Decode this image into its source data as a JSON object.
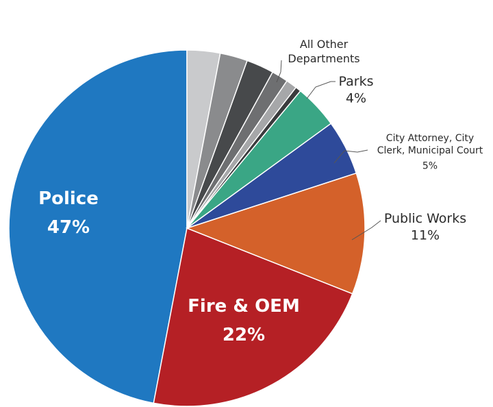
{
  "chart_data": {
    "type": "pie",
    "title": "",
    "slices": [
      {
        "label": "Police",
        "value": 47,
        "value_label": "47%",
        "color": "#1f78c1",
        "label_color": "#ffffff",
        "label_style": "inside"
      },
      {
        "label": "Fire & OEM",
        "value": 22,
        "value_label": "22%",
        "color": "#b52025",
        "label_color": "#ffffff",
        "label_style": "inside"
      },
      {
        "label": "Public Works",
        "value": 11,
        "value_label": "11%",
        "color": "#d4612a",
        "label_color": "#2b2b2b",
        "label_style": "outside"
      },
      {
        "label": "City Attorney, City Clerk, Municipal Court",
        "label_lines": [
          "City Attorney, City",
          "Clerk, Municipal Court"
        ],
        "value": 5,
        "value_label": "5%",
        "color": "#2e4a9a",
        "label_color": "#2b2b2b",
        "label_style": "outside"
      },
      {
        "label": "Parks",
        "value": 4,
        "value_label": "4%",
        "color": "#3aa685",
        "label_color": "#2b2b2b",
        "label_style": "outside"
      },
      {
        "label": "All Other Departments",
        "label_lines": [
          "All Other",
          "Departments"
        ],
        "value": 11,
        "color": "#8a8b8d",
        "label_color": "#2b2b2b",
        "label_style": "outside",
        "sub_slices": [
          {
            "value": 3,
            "color": "#c9cacc"
          },
          {
            "value": 2.5,
            "color": "#8a8b8d"
          },
          {
            "value": 2.5,
            "color": "#47494b"
          },
          {
            "value": 1.5,
            "color": "#6e6f71"
          },
          {
            "value": 1,
            "color": "#a6a7a9"
          },
          {
            "value": 0.5,
            "color": "#3a3b3d"
          }
        ]
      }
    ],
    "start": "12 o'clock",
    "direction": "clockwise from Police counter-clockwise",
    "legend": "none"
  }
}
